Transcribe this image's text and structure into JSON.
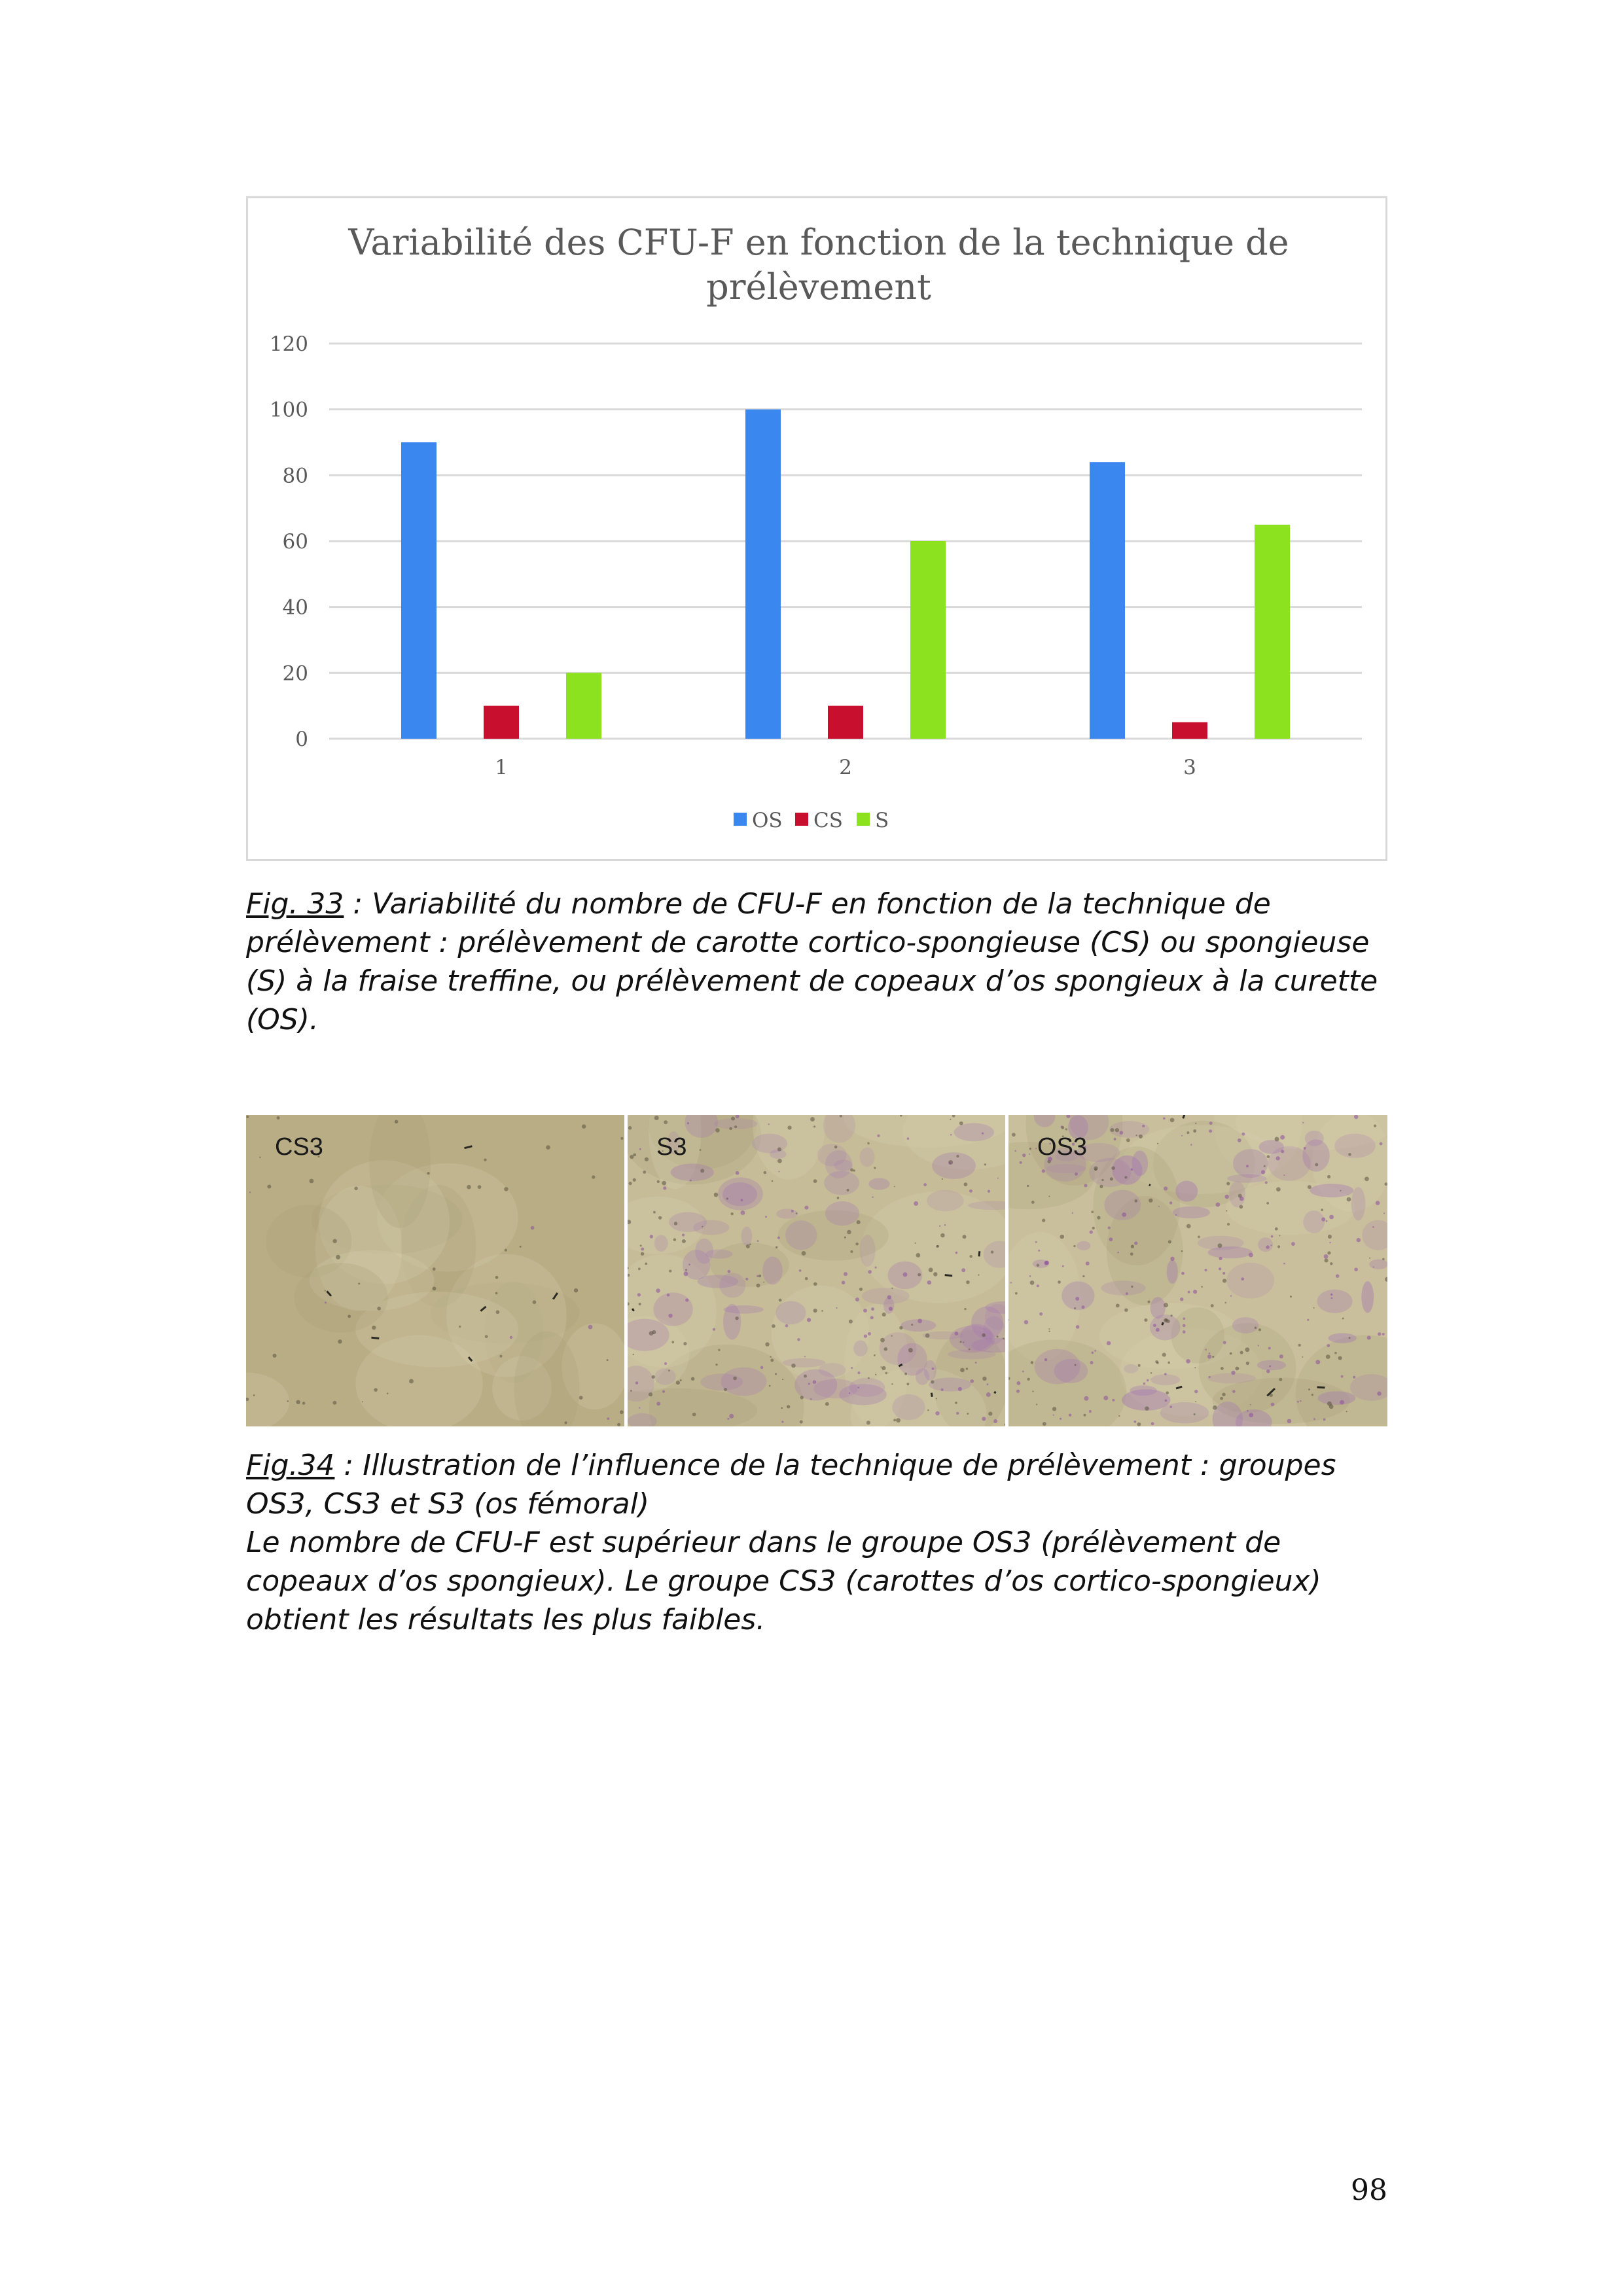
{
  "figure33": {
    "chart_data": {
      "type": "bar",
      "title": "Variabilité des CFU-F en fonction de la technique de prélèvement",
      "title_lines": [
        "Variabilité des CFU-F en fonction de la technique de",
        "prélèvement"
      ],
      "categories": [
        "1",
        "2",
        "3"
      ],
      "series": [
        {
          "name": "OS",
          "color": "#3b87f0",
          "values": [
            90,
            100,
            84
          ]
        },
        {
          "name": "CS",
          "color": "#c8102e",
          "values": [
            10,
            10,
            5
          ]
        },
        {
          "name": "S",
          "color": "#8ce21f",
          "values": [
            20,
            60,
            65
          ]
        }
      ],
      "y_ticks": [
        "0",
        "20",
        "40",
        "60",
        "80",
        "100",
        "120"
      ],
      "ylim": [
        0,
        120
      ],
      "xlabel": "",
      "ylabel": "",
      "grid": true,
      "legend_position": "bottom"
    },
    "caption": {
      "ref": "Fig. 33",
      "text": " : Variabilité du nombre de CFU-F en fonction de la technique de prélèvement : prélèvement de carotte cortico-spongieuse (CS) ou spongieuse (S) à la fraise treffine, ou prélèvement de copeaux d’os spongieux à la curette (OS)."
    }
  },
  "figure34": {
    "panels": [
      {
        "label": "CS3"
      },
      {
        "label": "S3"
      },
      {
        "label": "OS3"
      }
    ],
    "caption": {
      "ref": "Fig.34",
      "text": " : Illustration de l’influence de la technique de prélèvement : groupes OS3, CS3 et S3 (os fémoral)",
      "text2": "Le nombre de CFU-F est supérieur dans le groupe OS3 (prélèvement de copeaux d’os spongieux). Le groupe CS3 (carottes d’os cortico-spongieux) obtient les résultats les plus faibles."
    }
  },
  "page_number": "98"
}
